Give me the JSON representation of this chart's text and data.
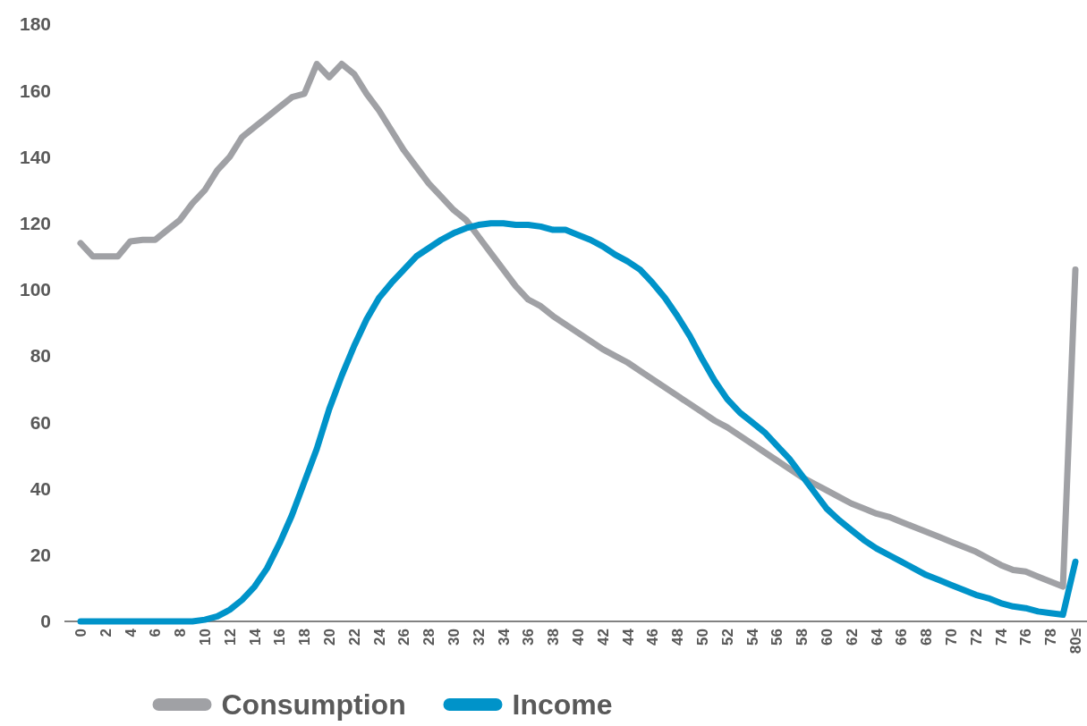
{
  "chart_data": {
    "type": "line",
    "categories": [
      "0",
      null,
      "2",
      null,
      "4",
      null,
      "6",
      null,
      "8",
      null,
      "10",
      null,
      "12",
      null,
      "14",
      null,
      "16",
      null,
      "18",
      null,
      "20",
      null,
      "22",
      null,
      "24",
      null,
      "26",
      null,
      "28",
      null,
      "30",
      null,
      "32",
      null,
      "34",
      null,
      "36",
      null,
      "38",
      null,
      "40",
      null,
      "42",
      null,
      "44",
      null,
      "46",
      null,
      "48",
      null,
      "50",
      null,
      "52",
      null,
      "54",
      null,
      "56",
      null,
      "58",
      null,
      "60",
      null,
      "62",
      null,
      "64",
      null,
      "66",
      null,
      "68",
      null,
      "70",
      null,
      "72",
      null,
      "74",
      null,
      "76",
      null,
      "78",
      null,
      "80≤"
    ],
    "series": [
      {
        "name": "Consumption",
        "color": "#a0a1a5",
        "values": [
          114,
          110,
          110,
          110,
          114.5,
          115,
          115,
          118,
          121,
          126,
          130,
          136,
          140,
          146,
          149,
          152,
          155,
          158,
          159,
          168,
          164,
          168,
          165,
          159,
          154,
          148,
          142,
          137,
          132,
          128,
          124,
          121,
          116,
          111,
          106,
          101,
          97,
          95,
          92,
          89.5,
          87,
          84.5,
          82,
          80,
          78,
          75.5,
          73,
          70.5,
          68,
          65.5,
          63,
          60.5,
          58.5,
          56,
          53.5,
          51,
          48.5,
          46,
          43.5,
          41.5,
          39.5,
          37.5,
          35.5,
          34,
          32.5,
          31.5,
          30,
          28.5,
          27,
          25.5,
          24,
          22.5,
          21,
          19,
          17,
          15.5,
          15,
          13.5,
          12,
          10.5,
          106
        ]
      },
      {
        "name": "Income",
        "color": "#0093c9",
        "values": [
          0,
          0,
          0,
          0,
          0,
          0,
          0,
          0,
          0,
          0,
          0.5,
          1.5,
          3.5,
          6.5,
          10.5,
          16,
          23.5,
          32,
          42,
          52,
          64,
          74,
          83,
          91,
          97.5,
          102,
          106,
          110,
          112.5,
          115,
          117,
          118.5,
          119.5,
          120,
          120,
          119.5,
          119.5,
          119,
          118,
          118,
          116.5,
          115,
          113,
          110.5,
          108.5,
          106,
          102,
          97.5,
          92,
          86,
          79,
          72.5,
          67,
          63,
          60,
          57,
          53,
          49,
          44,
          39,
          34,
          30.5,
          27.5,
          24.5,
          22,
          20,
          18,
          16,
          14,
          12.5,
          11,
          9.5,
          8,
          7,
          5.5,
          4.5,
          4,
          3,
          2.5,
          2,
          18
        ]
      }
    ],
    "ylim": [
      0,
      180
    ],
    "yticks": [
      0,
      20,
      40,
      60,
      80,
      100,
      120,
      140,
      160,
      180
    ],
    "grid": false,
    "legend": "bottom",
    "marker": "none",
    "line_style": "solid"
  }
}
